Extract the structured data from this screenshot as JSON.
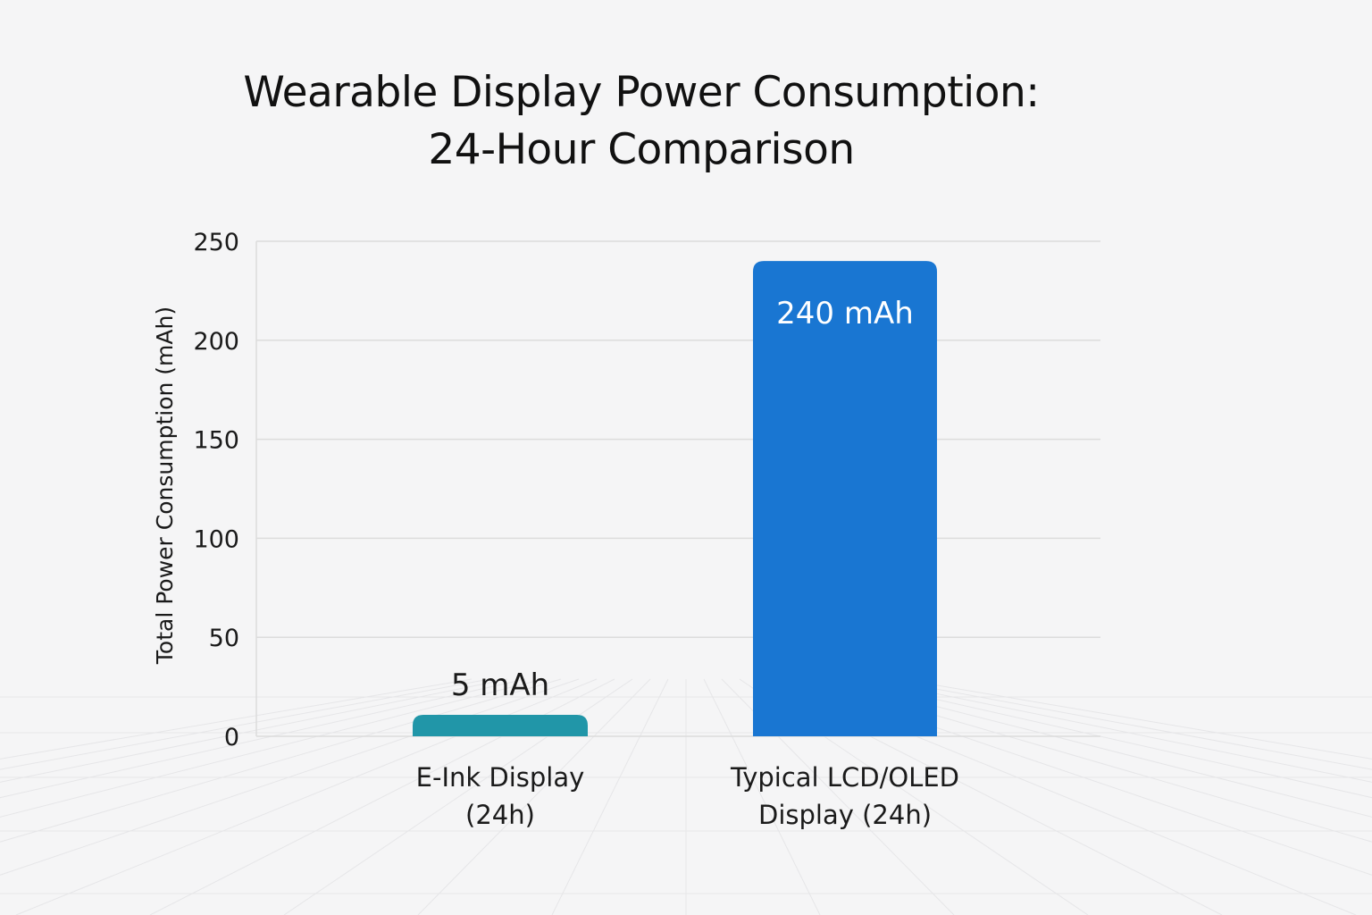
{
  "chart_data": {
    "type": "bar",
    "title": [
      "Wearable Display Power Consumption:",
      "24-Hour Comparison"
    ],
    "ylabel": "Total Power Consumption (mAh)",
    "xlabel": "",
    "ylim": [
      0,
      250
    ],
    "yticks": [
      0,
      50,
      100,
      150,
      200,
      250
    ],
    "grid": true,
    "categories": [
      [
        "E-Ink Display",
        "(24h)"
      ],
      [
        "Typical LCD/OLED",
        "Display (24h)"
      ]
    ],
    "values": [
      5,
      240
    ],
    "data_labels": [
      "5 mAh",
      "240 mAh"
    ],
    "colors": [
      "#2196a8",
      "#1976d2"
    ]
  }
}
